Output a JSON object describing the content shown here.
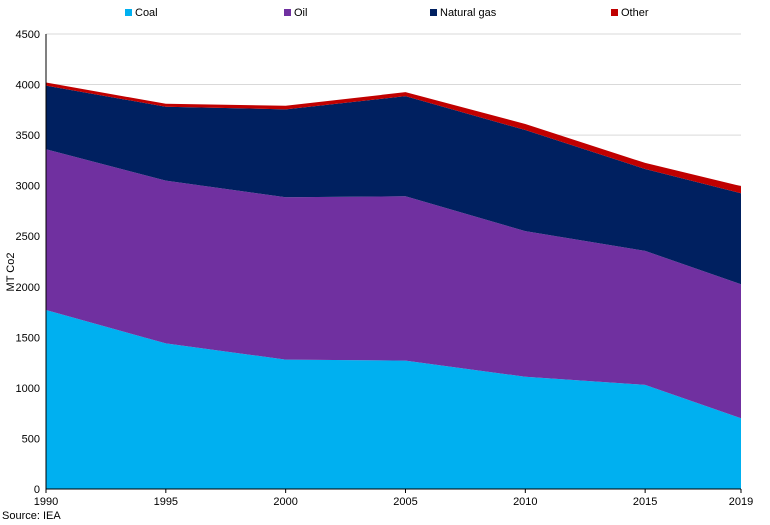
{
  "chart_data": {
    "type": "area",
    "stacked": true,
    "title": "",
    "xlabel": "",
    "ylabel": "MT Co2",
    "x": [
      1990,
      1995,
      2000,
      2005,
      2010,
      2015,
      2019
    ],
    "ylim": [
      0,
      4500
    ],
    "yticks": [
      0,
      500,
      1000,
      1500,
      2000,
      2500,
      3000,
      3500,
      4000,
      4500
    ],
    "grid": true,
    "legend_position": "top",
    "series": [
      {
        "name": "Coal",
        "color": "#00b0f0",
        "values": [
          1770,
          1440,
          1280,
          1270,
          1110,
          1030,
          700
        ]
      },
      {
        "name": "Oil",
        "color": "#7030a0",
        "values": [
          1590,
          1610,
          1605,
          1625,
          1440,
          1325,
          1325
        ]
      },
      {
        "name": "Natural gas",
        "color": "#002060",
        "values": [
          630,
          730,
          870,
          990,
          1000,
          810,
          900
        ]
      },
      {
        "name": "Other",
        "color": "#c00000",
        "values": [
          30,
          30,
          35,
          40,
          60,
          60,
          70
        ]
      }
    ],
    "source": "Source: IEA"
  }
}
